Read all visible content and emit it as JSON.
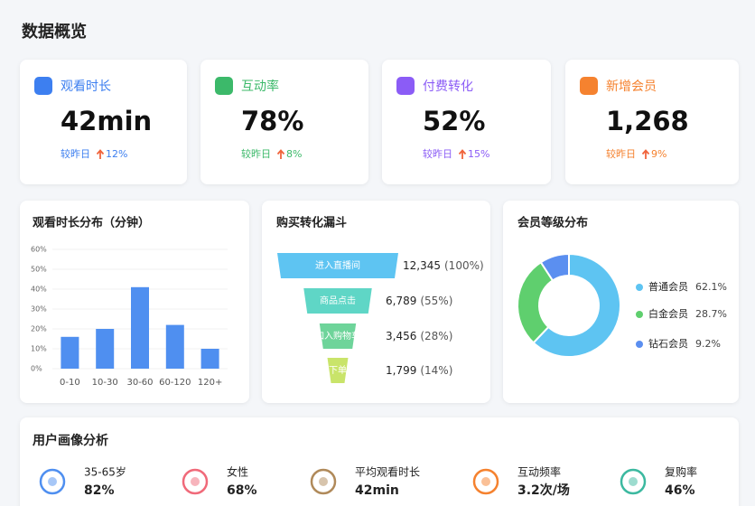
{
  "title": "数据概览",
  "kpis": [
    {
      "label": "观看时长",
      "value": "42min",
      "compare": "较昨日",
      "change": "12%",
      "color": "#3d7ff0"
    },
    {
      "label": "互动率",
      "value": "78%",
      "compare": "较昨日",
      "change": "8%",
      "color": "#3cb96a"
    },
    {
      "label": "付费转化",
      "value": "52%",
      "compare": "较昨日",
      "change": "15%",
      "color": "#8b5cf6"
    },
    {
      "label": "新增会员",
      "value": "1,268",
      "compare": "较昨日",
      "change": "9%",
      "color": "#f5822f"
    }
  ],
  "chart_data": [
    {
      "type": "bar",
      "title": "观看时长分布（分钟）",
      "categories": [
        "0-10",
        "10-30",
        "30-60",
        "60-120",
        "120+"
      ],
      "values": [
        16,
        20,
        41,
        22,
        10
      ],
      "color": "#4f8ff0",
      "ylim": [
        0,
        60
      ],
      "yticks": [
        {
          "value": 0,
          "label": "0%"
        },
        {
          "value": 10,
          "label": "10%"
        },
        {
          "value": 20,
          "label": "20%"
        },
        {
          "value": 30,
          "label": "30%"
        },
        {
          "value": 40,
          "label": "40%"
        },
        {
          "value": 50,
          "label": "50%"
        },
        {
          "value": 60,
          "label": "60%"
        }
      ]
    },
    {
      "type": "funnel",
      "title": "购买转化漏斗",
      "categories": [
        "进入直播间",
        "商品点击",
        "加入购物车",
        "下单"
      ],
      "values": [
        12345,
        6789,
        3456,
        1799
      ],
      "value_labels": [
        "12,345",
        "6,789",
        "3,456",
        "1,799"
      ],
      "rates": [
        "(100%)",
        "(55%)",
        "(28%)",
        "(14%)"
      ],
      "colors": [
        "#5ec4f2",
        "#5fd6c6",
        "#6ed49a",
        "#c9e46a"
      ]
    },
    {
      "type": "donut",
      "title": "会员等级分布",
      "categories": [
        "普通会员",
        "白金会员",
        "钻石会员"
      ],
      "values": [
        62.1,
        28.7,
        9.2
      ],
      "value_labels": [
        "62.1%",
        "28.7%",
        "9.2%"
      ],
      "colors": [
        "#5ec4f2",
        "#5fcf6e",
        "#5b8ff0"
      ]
    }
  ],
  "profile": {
    "title": "用户画像分析",
    "items": [
      {
        "label": "35-65岁",
        "value": "82%",
        "color": "#4f8ff0"
      },
      {
        "label": "女性",
        "value": "68%",
        "color": "#f06a7a"
      },
      {
        "label": "平均观看时长",
        "value": "42min",
        "color": "#b08a5a"
      },
      {
        "label": "互动频率",
        "value": "3.2次/场",
        "color": "#f5822f"
      },
      {
        "label": "复购率",
        "value": "46%",
        "color": "#3cb9a0"
      }
    ]
  }
}
